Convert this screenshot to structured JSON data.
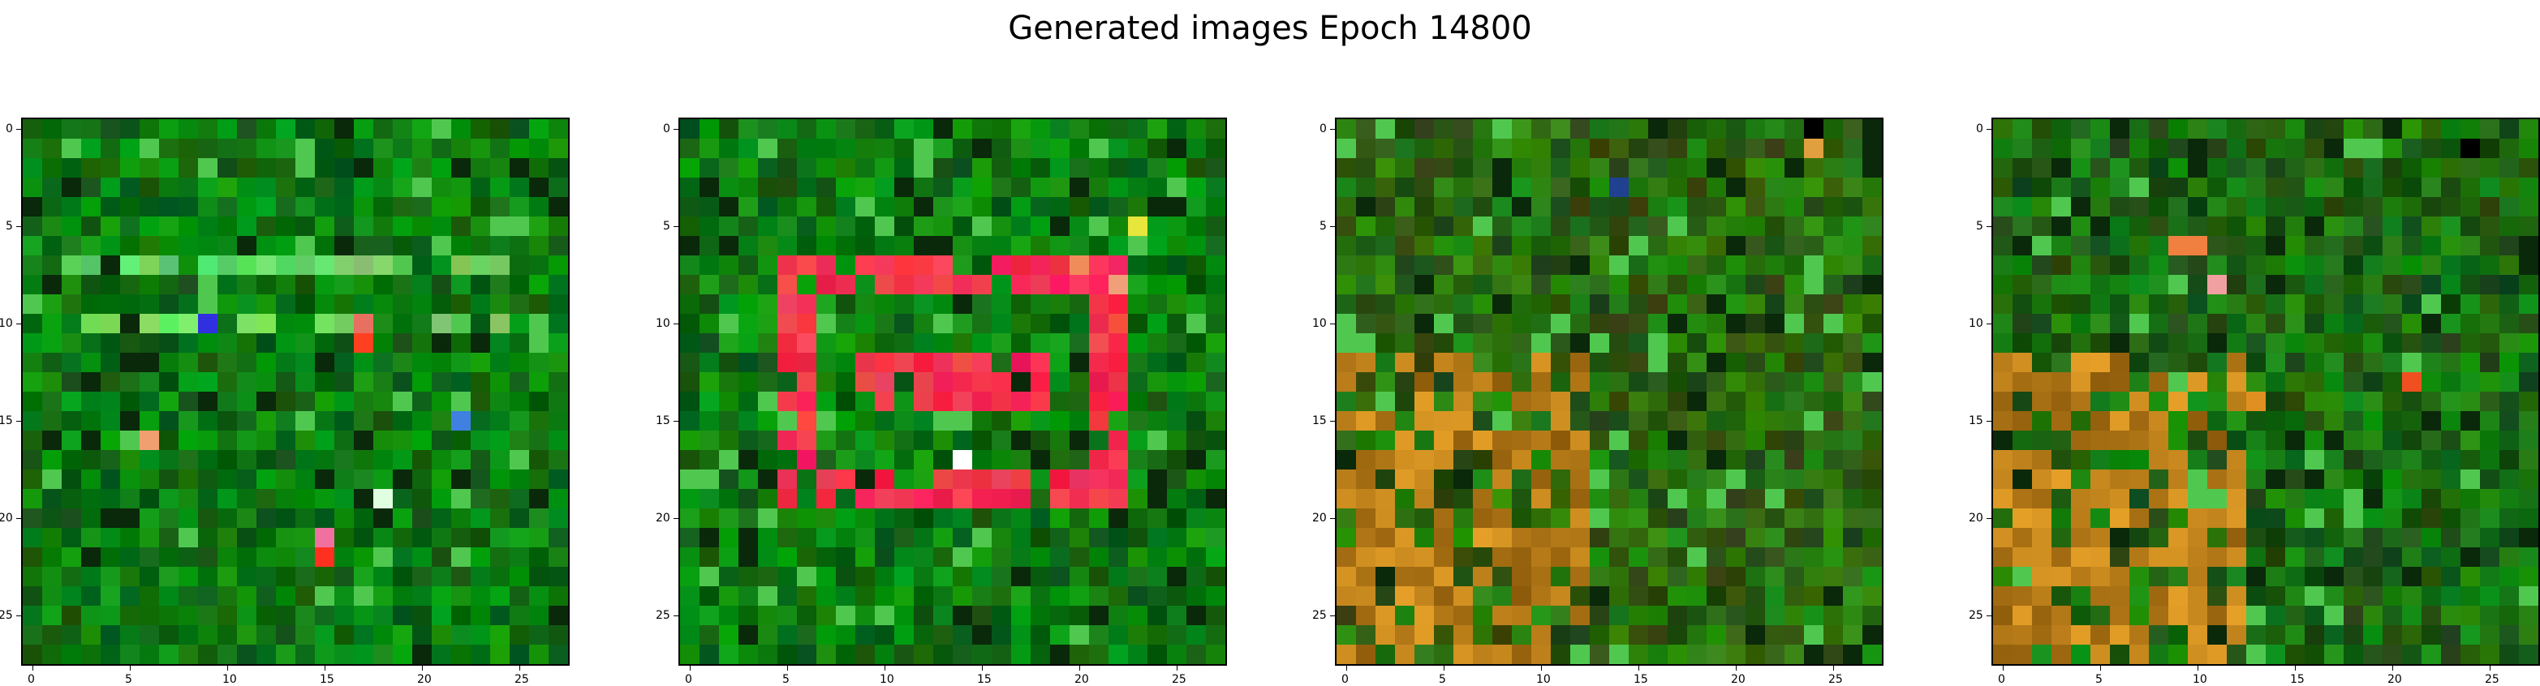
{
  "figure": {
    "title": "Generated images Epoch 14800"
  },
  "axes": {
    "x_ticks": [
      "0",
      "5",
      "10",
      "15",
      "20",
      "25"
    ],
    "y_ticks": [
      "0",
      "5",
      "10",
      "15",
      "20",
      "25"
    ],
    "tick_values": [
      0,
      5,
      10,
      15,
      20,
      25
    ],
    "grid_size": 28
  },
  "panels": [
    {
      "name": "generated-image-1",
      "base_color": "#0c7a12",
      "features": [
        {
          "kind": "bright-green-band",
          "row": 7
        },
        {
          "kind": "bright-green-band",
          "row": 10
        },
        {
          "kind": "color-spot",
          "row": 10,
          "col": 9,
          "color": "#3030e0"
        },
        {
          "kind": "color-spot",
          "row": 10,
          "col": 17,
          "color": "#e87060"
        },
        {
          "kind": "color-spot",
          "row": 11,
          "col": 17,
          "color": "#ff4020"
        },
        {
          "kind": "color-spot",
          "row": 16,
          "col": 6,
          "color": "#f0a070"
        },
        {
          "kind": "color-spot",
          "row": 15,
          "col": 22,
          "color": "#4080e0"
        },
        {
          "kind": "color-spot",
          "row": 19,
          "col": 18,
          "color": "#e0ffe0"
        },
        {
          "kind": "color-spot",
          "row": 21,
          "col": 15,
          "color": "#f070a0"
        },
        {
          "kind": "color-spot",
          "row": 22,
          "col": 15,
          "color": "#ff3020"
        }
      ]
    },
    {
      "name": "generated-image-2",
      "base_color": "#0c7a12",
      "features": [
        {
          "kind": "red-ring"
        }
      ]
    },
    {
      "name": "generated-image-3",
      "base_color": "#2a6a10",
      "features": [
        {
          "kind": "olive-warm-lower-left"
        },
        {
          "kind": "color-spot",
          "row": 3,
          "col": 14,
          "color": "#204090"
        },
        {
          "kind": "color-spot",
          "row": 1,
          "col": 24,
          "color": "#e0a040"
        },
        {
          "kind": "color-spot",
          "row": 0,
          "col": 24,
          "color": "#000000"
        }
      ]
    },
    {
      "name": "generated-image-4",
      "base_color": "#1a6a12",
      "features": [
        {
          "kind": "color-spot",
          "row": 6,
          "col": 9,
          "color": "#f08040"
        },
        {
          "kind": "color-spot",
          "row": 6,
          "col": 10,
          "color": "#f08040"
        },
        {
          "kind": "color-spot",
          "row": 8,
          "col": 11,
          "color": "#f0a0a0"
        },
        {
          "kind": "color-spot",
          "row": 13,
          "col": 21,
          "color": "#f05020"
        },
        {
          "kind": "color-spot",
          "row": 14,
          "col": 12,
          "color": "#c04020"
        },
        {
          "kind": "color-spot",
          "row": 14,
          "col": 13,
          "color": "#e09020"
        },
        {
          "kind": "color-spot",
          "row": 1,
          "col": 24,
          "color": "#000000"
        },
        {
          "kind": "olive-warm-lower-left"
        }
      ]
    }
  ]
}
